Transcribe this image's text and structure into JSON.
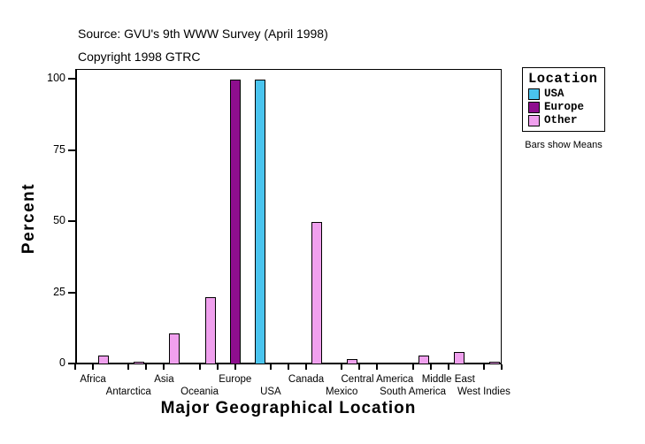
{
  "header": {
    "source_line": "Source: GVU's 9th WWW Survey (April 1998)",
    "copyright_line": "Copyright 1998 GTRC"
  },
  "chart_data": {
    "type": "bar",
    "title": "",
    "xlabel": "Major Geographical Location",
    "ylabel": "Percent",
    "ylim": [
      0,
      100
    ],
    "yticks": [
      0,
      25,
      50,
      75,
      100
    ],
    "grid": false,
    "note": "Bars show Means",
    "legend": {
      "title": "Location",
      "position": "right",
      "entries": [
        {
          "label": "USA",
          "color": "#4AC4EE"
        },
        {
          "label": "Europe",
          "color": "#8E0E8E"
        },
        {
          "label": "Other",
          "color": "#F0A0EE"
        }
      ]
    },
    "categories": [
      "Africa",
      "Antarctica",
      "Asia",
      "Oceania",
      "Europe",
      "USA",
      "Canada",
      "Mexico",
      "Central America",
      "South America",
      "Middle East",
      "West Indies"
    ],
    "series": [
      {
        "name": "USA",
        "values": [
          0,
          0,
          0,
          0,
          0,
          100,
          0,
          0,
          0,
          0,
          0,
          0
        ]
      },
      {
        "name": "Europe",
        "values": [
          0,
          0,
          0,
          0,
          100,
          0,
          0,
          0,
          0,
          0,
          0,
          0
        ]
      },
      {
        "name": "Other",
        "values": [
          3,
          0.8,
          11,
          23.5,
          0,
          0,
          50,
          2,
          0.5,
          3,
          4.5,
          1
        ]
      }
    ]
  }
}
